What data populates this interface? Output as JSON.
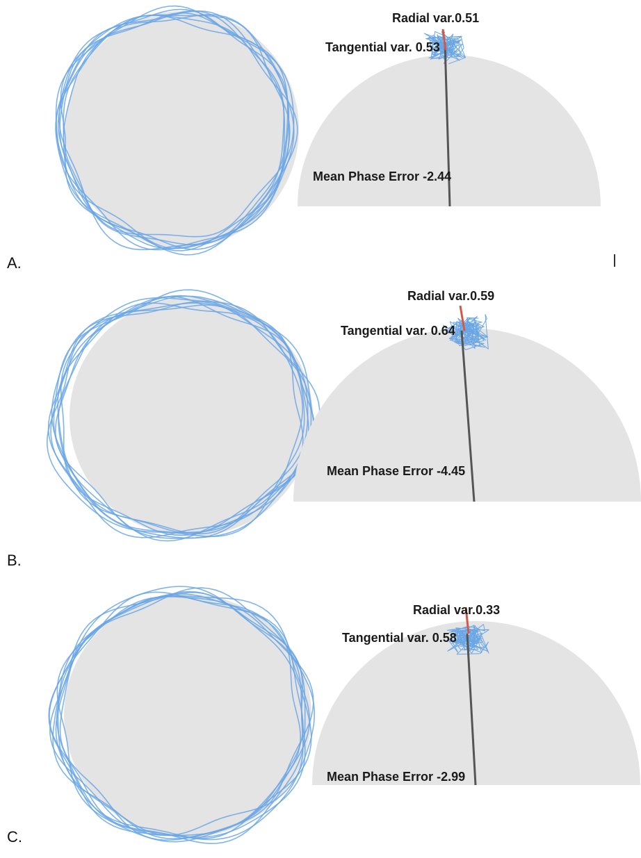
{
  "panels": [
    {
      "letter": "A.",
      "radial": {
        "label": "Radial var.",
        "value": "0.51"
      },
      "tangential": {
        "label": "Tangential var.",
        "value": "0.53"
      },
      "mean_phase": {
        "label": "Mean Phase Error",
        "value": "-2.44"
      }
    },
    {
      "letter": "B.",
      "radial": {
        "label": "Radial var.",
        "value": "0.59"
      },
      "tangential": {
        "label": "Tangential var.",
        "value": "0.64"
      },
      "mean_phase": {
        "label": "Mean Phase Error",
        "value": "-4.45"
      }
    },
    {
      "letter": "C.",
      "radial": {
        "label": "Radial var.",
        "value": "0.33"
      },
      "tangential": {
        "label": "Tangential var.",
        "value": "0.58"
      },
      "mean_phase": {
        "label": "Mean Phase Error",
        "value": "-2.99"
      }
    }
  ],
  "colors": {
    "trace": "#6aa6e6",
    "disc": "#e4e4e4",
    "phase_line": "#555555",
    "radial_bar": "#d05a4a",
    "text": "#1a1a1a"
  }
}
